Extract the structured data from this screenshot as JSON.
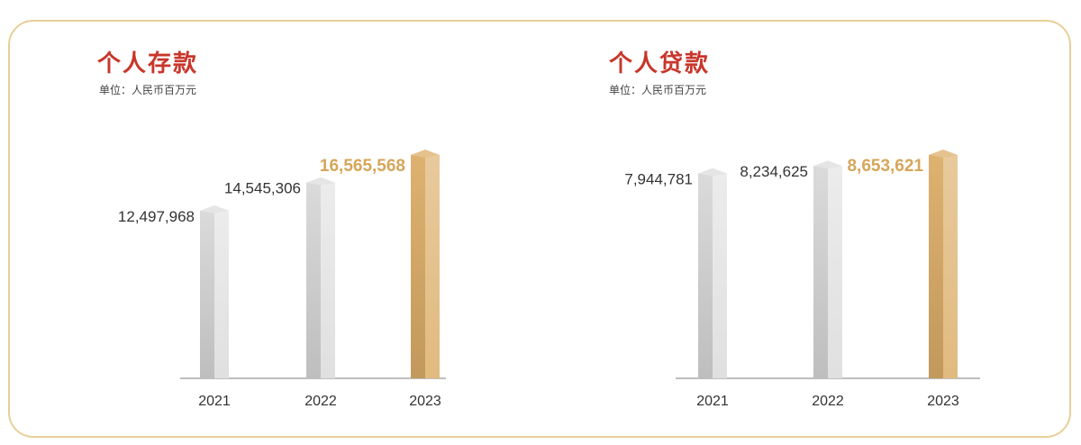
{
  "chart_data": [
    {
      "type": "bar",
      "title": "个人存款",
      "subtitle": "单位：人民币百万元",
      "categories": [
        "2021",
        "2022",
        "2023"
      ],
      "values": [
        12497968,
        14545306,
        16565568
      ],
      "value_labels": [
        "12,497,968",
        "14,545,306",
        "16,565,568"
      ],
      "highlight_index": 2,
      "colors": {
        "normal": "#cfcfcf",
        "highlight": "#dcae68"
      }
    },
    {
      "type": "bar",
      "title": "个人贷款",
      "subtitle": "单位：人民币百万元",
      "categories": [
        "2021",
        "2022",
        "2023"
      ],
      "values": [
        7944781,
        8234625,
        8653621
      ],
      "value_labels": [
        "7,944,781",
        "8,234,625",
        "8,653,621"
      ],
      "highlight_index": 2,
      "colors": {
        "normal": "#cfcfcf",
        "highlight": "#dcae68"
      }
    }
  ]
}
